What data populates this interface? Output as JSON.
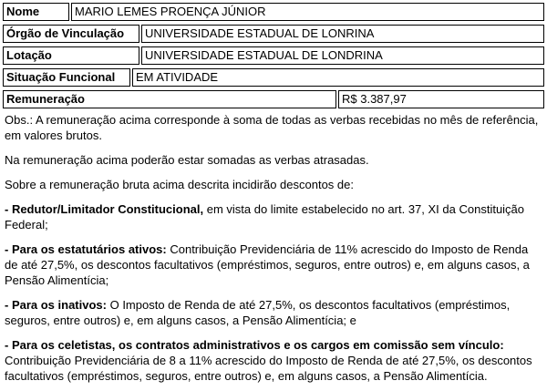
{
  "fields": {
    "name": {
      "label": "Nome",
      "value": "MARIO LEMES PROENÇA JÚNIOR"
    },
    "orgao": {
      "label": "Órgão de Vinculação",
      "value": "UNIVERSIDADE ESTADUAL DE LONRINA"
    },
    "lotacao": {
      "label": "Lotação",
      "value": "UNIVERSIDADE ESTADUAL DE LONDRINA"
    },
    "situacao": {
      "label": "Situação Funcional",
      "value": "EM ATIVIDADE"
    },
    "remuneracao": {
      "label": "Remuneração",
      "value": "R$ 3.387,97"
    }
  },
  "notes": {
    "obs": "Obs.: A remuneração acima corresponde à soma de todas as verbas recebidas no mês de referência, em valores brutos.",
    "atrasadas": "Na remuneração acima poderão estar somadas as verbas atrasadas.",
    "descontos_intro": "Sobre a remuneração bruta acima descrita incidirão descontos de:",
    "redutor_title": "- Redutor/Limitador Constitucional,",
    "redutor_text": " em vista do limite estabelecido no art. 37, XI da Constituição Federal;",
    "estatutarios_title": "- Para os estatutários ativos:",
    "estatutarios_text": " Contribuição Previdenciária de 11% acrescido do Imposto de Renda de até 27,5%, os descontos facultativos (empréstimos, seguros, entre outros) e, em alguns casos, a Pensão Alimentícia;",
    "inativos_title": "- Para os inativos:",
    "inativos_text": " O Imposto de Renda de até 27,5%, os descontos facultativos (empréstimos, seguros, entre outros) e, em alguns casos, a Pensão Alimentícia; e",
    "celetistas_title": "- Para os celetistas, os contratos administrativos e os cargos em comissão sem vínculo:",
    "celetistas_text": " Contribuição Previdenciária de 8 a 11% acrescido do Imposto de Renda de até 27,5%, os descontos facultativos (empréstimos, seguros, entre outros) e, em alguns casos, a Pensão Alimentícia."
  }
}
